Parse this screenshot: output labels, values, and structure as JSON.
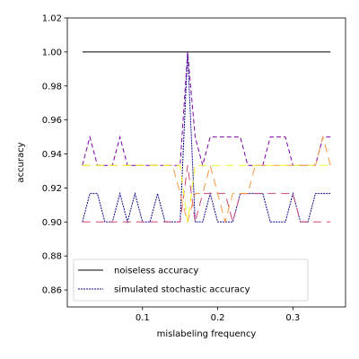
{
  "chart_data": {
    "type": "line",
    "xlabel": "mislabeling frequency",
    "ylabel": "accuracy",
    "xlim": [
      0.0,
      0.37
    ],
    "ylim": [
      0.85,
      1.02
    ],
    "xticks": [
      0.1,
      0.2,
      0.3
    ],
    "xtick_labels": [
      "0.1",
      "0.2",
      "0.3"
    ],
    "yticks": [
      0.86,
      0.88,
      0.9,
      0.92,
      0.94,
      0.96,
      0.98,
      1.0,
      1.02
    ],
    "ytick_labels": [
      "0.86",
      "0.88",
      "0.90",
      "0.92",
      "0.94",
      "0.96",
      "0.98",
      "1.00",
      "1.02"
    ],
    "grid": false,
    "legend_position": "lower-left",
    "x": [
      0.02,
      0.03,
      0.04,
      0.05,
      0.06,
      0.07,
      0.08,
      0.09,
      0.1,
      0.11,
      0.12,
      0.13,
      0.14,
      0.15,
      0.16,
      0.17,
      0.18,
      0.19,
      0.2,
      0.21,
      0.22,
      0.23,
      0.24,
      0.25,
      0.26,
      0.27,
      0.28,
      0.29,
      0.3,
      0.31,
      0.32,
      0.33,
      0.34,
      0.35
    ],
    "series": [
      {
        "name": "noiseless accuracy",
        "color": "#000000",
        "dash": "solid",
        "values": [
          1.0,
          1.0,
          1.0,
          1.0,
          1.0,
          1.0,
          1.0,
          1.0,
          1.0,
          1.0,
          1.0,
          1.0,
          1.0,
          1.0,
          1.0,
          1.0,
          1.0,
          1.0,
          1.0,
          1.0,
          1.0,
          1.0,
          1.0,
          1.0,
          1.0,
          1.0,
          1.0,
          1.0,
          1.0,
          1.0,
          1.0,
          1.0,
          1.0,
          1.0
        ]
      },
      {
        "name": "simulated stochastic accuracy",
        "color": "#0d0887",
        "dash": "dotted",
        "values": [
          0.9,
          0.9167,
          0.9167,
          0.9,
          0.9,
          0.9167,
          0.9,
          0.9167,
          0.9,
          0.9,
          0.9167,
          0.9,
          0.9,
          0.9,
          1.0,
          0.9,
          0.9,
          0.9167,
          0.9,
          0.9,
          0.9,
          0.9167,
          0.9167,
          0.9167,
          0.9167,
          0.9,
          0.9,
          0.9,
          0.9167,
          0.9,
          0.9,
          0.9167,
          0.9167,
          0.9167
        ]
      },
      {
        "color": "#7e03a8",
        "dash": "dashed",
        "values": [
          0.9333,
          0.95,
          0.9333,
          0.9333,
          0.9333,
          0.95,
          0.9333,
          0.9333,
          0.9333,
          0.9333,
          0.9333,
          0.9333,
          0.9333,
          0.9333,
          1.0,
          0.95,
          0.9333,
          0.95,
          0.95,
          0.95,
          0.95,
          0.95,
          0.9333,
          0.9333,
          0.9333,
          0.95,
          0.95,
          0.95,
          0.9333,
          0.9333,
          0.9333,
          0.9333,
          0.95,
          0.95
        ]
      },
      {
        "color": "#cc4778",
        "dash": "longdash",
        "values": [
          0.9,
          0.9,
          0.9,
          0.9,
          0.9,
          0.9,
          0.9,
          0.9,
          0.9,
          0.9,
          0.9,
          0.9,
          0.9,
          0.9,
          0.9333,
          0.9,
          0.9167,
          0.9167,
          0.9167,
          0.9167,
          0.9,
          0.9167,
          0.9167,
          0.9167,
          0.9167,
          0.9167,
          0.9167,
          0.9167,
          0.9167,
          0.9,
          0.9,
          0.9,
          0.9,
          0.9
        ]
      },
      {
        "color": "#f89540",
        "dash": "longdash",
        "values": [
          0.9333,
          0.9333,
          0.9333,
          0.9333,
          0.9333,
          0.9333,
          0.9333,
          0.9333,
          0.9333,
          0.9333,
          0.9333,
          0.9333,
          0.9333,
          0.9167,
          0.9,
          0.9167,
          0.9167,
          0.9333,
          0.9167,
          0.9,
          0.9167,
          0.9167,
          0.9167,
          0.9333,
          0.9333,
          0.9333,
          0.9333,
          0.9333,
          0.9333,
          0.9333,
          0.9333,
          0.9333,
          0.95,
          0.9333
        ]
      },
      {
        "color": "#f0f921",
        "dash": "longdash",
        "values": [
          0.9333,
          0.9333,
          0.9333,
          0.9333,
          0.9333,
          0.9333,
          0.9333,
          0.9333,
          0.9333,
          0.9333,
          0.9333,
          0.9333,
          0.9333,
          0.9333,
          0.9,
          0.9333,
          0.9333,
          0.9333,
          0.9333,
          0.9333,
          0.9333,
          0.9333,
          0.9333,
          0.9333,
          0.9333,
          0.9333,
          0.9333,
          0.9333,
          0.9333,
          0.9333,
          0.9333,
          0.9333,
          0.9333,
          0.9333
        ]
      }
    ]
  }
}
